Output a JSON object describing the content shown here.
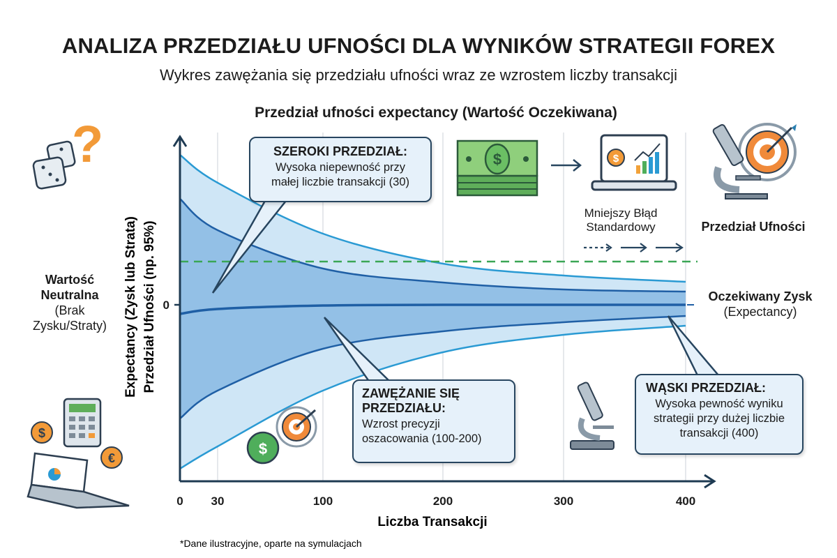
{
  "title": "ANALIZA PRZEDZIAŁU UFNOŚCI DLA WYNIKÓW STRATEGII FOREX",
  "subtitle": "Wykres zawężania się przedziału ufności wraz ze wzrostem liczby transakcji",
  "footnote": "*Dane ilustracyjne, oparte na symulacjach",
  "labels": {
    "neutral_title": "Wartość Neutralna",
    "neutral_sub": "(Brak Zysku/Straty)",
    "mniejszy_blad": "Mniejszy Błąd Standardowy",
    "przedzial_ufnosci": "Przedział Ufności",
    "oczekiwany_zysk": "Oczekiwany Zysk",
    "expectancy": "(Expectancy)"
  },
  "callouts": [
    {
      "title": "SZEROKI PRZEDZIAŁ:",
      "body": "Wysoka niepewność przy małej liczbie transakcji (30)"
    },
    {
      "title": "ZAWĘŻANIE SIĘ PRZEDZIAŁU:",
      "body": "Wzrost precyzji oszacowania (100-200)"
    },
    {
      "title": "WĄSKI PRZEDZIAŁ:",
      "body": "Wysoka pewność wyniku strategii przy dużej liczbie transakcji (400)"
    }
  ],
  "icons": [
    "dice-question-icon",
    "money-icon",
    "laptop-chart-icon",
    "microscope-target-icon",
    "calculator-laptop-coins-icon",
    "coin-target-icon",
    "microscope-icon"
  ],
  "colors": {
    "outer_band": "#cfe6f6",
    "inner_band": "#88b9e3",
    "outer_line": "#2a9ad3",
    "inner_line": "#1f5fa5",
    "mean_line": "#1f5fa5",
    "reference": "#3aa655",
    "axis": "#1e3a52"
  },
  "chart_data": {
    "type": "area",
    "title": "Przedział ufności expectancy (Wartość Oczekiwana)",
    "xlabel": "Liczba Transakcji",
    "ylabel": "Expectancy (Zysk lub Strata) Przedział Ufności (np. 95%)",
    "x_ticks": [
      0,
      30,
      100,
      200,
      300,
      400
    ],
    "y_ticks": [
      0
    ],
    "xlim": [
      0,
      400
    ],
    "grid": "vertical",
    "x": [
      0,
      30,
      100,
      200,
      300,
      400
    ],
    "series": [
      {
        "role": "outer_upper",
        "values": [
          1.075,
          0.875,
          0.51,
          0.295,
          0.21,
          0.165
        ]
      },
      {
        "role": "inner_upper",
        "values": [
          0.76,
          0.535,
          0.26,
          0.16,
          0.11,
          0.095
        ]
      },
      {
        "role": "mean",
        "values": [
          -0.065,
          -0.03,
          -0.005,
          0,
          0,
          0
        ]
      },
      {
        "role": "inner_lower",
        "values": [
          -0.815,
          -0.615,
          -0.315,
          -0.19,
          -0.125,
          -0.08
        ]
      },
      {
        "role": "outer_lower",
        "values": [
          -1.175,
          -1.015,
          -0.615,
          -0.34,
          -0.215,
          -0.15
        ]
      }
    ],
    "reference_line": {
      "y": 0.31,
      "style": "dashed"
    }
  }
}
